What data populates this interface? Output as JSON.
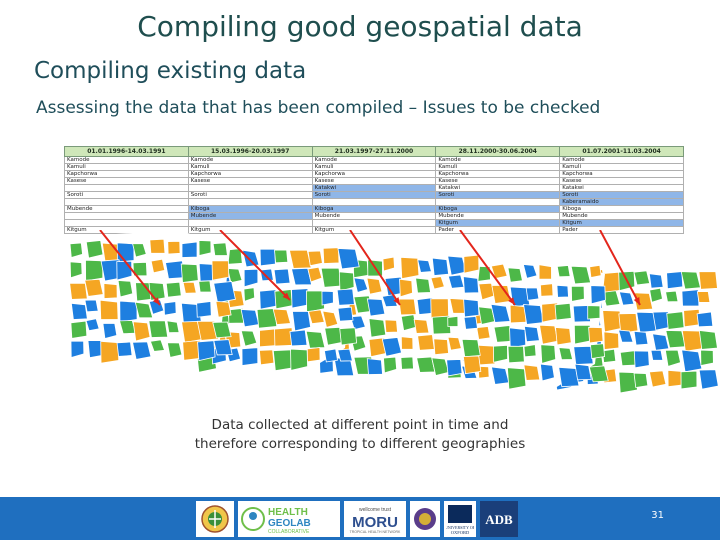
{
  "slide": {
    "title": "Compiling good geospatial data",
    "subtitle": "Compiling existing data",
    "heading": "Assessing the data that has been compiled – Issues to be checked",
    "caption_line1": "Data collected at different point in time and",
    "caption_line2": "therefore corresponding to different geographies",
    "page_number": "31"
  },
  "table": {
    "periods": [
      "01.01.1996-14.03.1991",
      "15.03.1996-20.03.1997",
      "21.03.1997-27.11.2000",
      "28.11.2000-30.06.2004",
      "01.07.2001-11.03.2004"
    ],
    "rows": [
      [
        "Kamode",
        "Kamode",
        "Kamode",
        "Kamode",
        "Kamode"
      ],
      [
        "Kamuli",
        "Kamuli",
        "Kamuli",
        "Kamuli",
        "Kamuli"
      ],
      [
        "Kapchorwa",
        "Kapchorwa",
        "Kapchorwa",
        "Kapchorwa",
        "Kapchorwa"
      ],
      [
        "Kasese",
        "Kasese",
        "Kasese",
        "Kasese",
        "Kasese"
      ],
      [
        "",
        "",
        "Katakwi",
        "Katakwi",
        "Katakwi"
      ],
      [
        "Soroti",
        "Soroti",
        "Soroti",
        "Soroti",
        "Soroti"
      ],
      [
        "",
        "",
        "",
        "",
        "Kaberamaido"
      ],
      [
        "Mubende",
        "Kiboga",
        "Kiboga",
        "Kiboga",
        "Kiboga"
      ],
      [
        "",
        "Mubende",
        "Mubende",
        "Mubende",
        "Mubende"
      ],
      [
        "",
        "",
        "",
        "Kitgum",
        "Kitgum"
      ],
      [
        "Kitgum",
        "Kitgum",
        "Kitgum",
        "Pader",
        "Pader"
      ]
    ]
  },
  "logos": [
    "HEALTH GEOLAB COLLABORATIVE",
    "wellcome trust MORU",
    "UNIVERSITY OF OXFORD",
    "ADB"
  ],
  "colors": {
    "blue": "#1e7fe0",
    "orange": "#f5a623",
    "green": "#4db848",
    "footer": "#1f6fbf"
  }
}
